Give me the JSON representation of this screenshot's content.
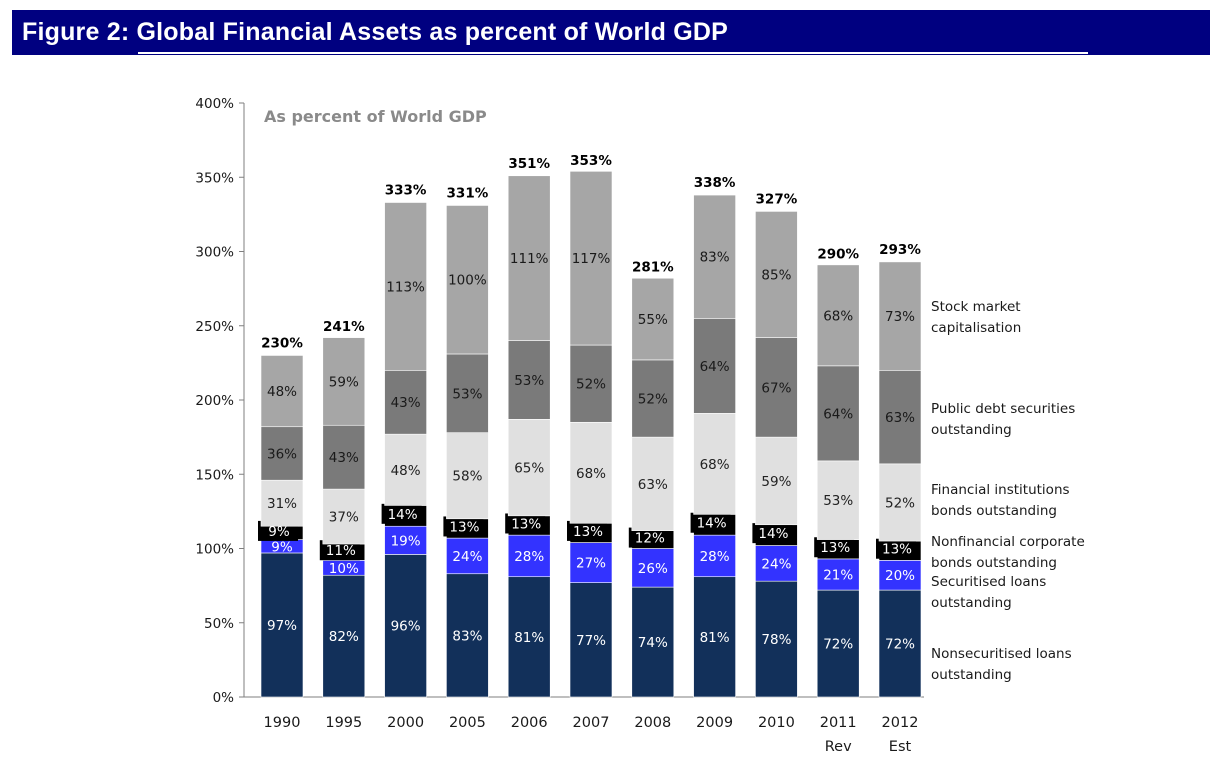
{
  "figure_title": "Figure 2: Global Financial Assets as percent of World GDP",
  "chart_data": {
    "type": "bar",
    "stacked": true,
    "title": "As percent of World GDP",
    "categories": [
      "1990",
      "1995",
      "2000",
      "2005",
      "2006",
      "2007",
      "2008",
      "2009",
      "2010",
      "2011\nRev",
      "2012\nEst"
    ],
    "ylim": [
      0,
      400
    ],
    "yticks": [
      "0%",
      "50%",
      "100%",
      "150%",
      "200%",
      "250%",
      "300%",
      "350%",
      "400%"
    ],
    "grid": false,
    "legend_position": "right",
    "totals": [
      230,
      241,
      333,
      331,
      351,
      353,
      281,
      338,
      327,
      290,
      293
    ],
    "total_labels": [
      "230%",
      "241%",
      "333%",
      "331%",
      "351%",
      "353%",
      "281%",
      "338%",
      "327%",
      "290%",
      "293%"
    ],
    "series": [
      {
        "name": "Nonsecuritised loans\noutstanding",
        "color": "#12305a",
        "label_color": "#ffffff",
        "values": [
          97,
          82,
          96,
          83,
          81,
          77,
          74,
          81,
          78,
          72,
          72
        ],
        "labels": [
          "97%",
          "82%",
          "96%",
          "83%",
          "81%",
          "77%",
          "74%",
          "81%",
          "78%",
          "72%",
          "72%"
        ]
      },
      {
        "name": "Securitised loans\noutstanding",
        "color": "#3333ff",
        "label_color": "#ffffff",
        "values": [
          9,
          10,
          19,
          24,
          28,
          27,
          26,
          28,
          24,
          21,
          20
        ],
        "labels": [
          "9%",
          "10%",
          "19%",
          "24%",
          "28%",
          "27%",
          "26%",
          "28%",
          "24%",
          "21%",
          "20%"
        ]
      },
      {
        "name": "Nonfinancial corporate\nbonds outstanding",
        "color": "#000000",
        "label_color": "#ffffff",
        "values": [
          9,
          11,
          14,
          13,
          13,
          13,
          12,
          14,
          14,
          13,
          13
        ],
        "labels": [
          "9%",
          "11%",
          "14%",
          "13%",
          "13%",
          "13%",
          "12%",
          "14%",
          "14%",
          "13%",
          "13%"
        ]
      },
      {
        "name": "Financial institutions\nbonds outstanding",
        "color": "#e0e0e0",
        "label_color": "#222222",
        "values": [
          31,
          37,
          48,
          58,
          65,
          68,
          63,
          68,
          59,
          53,
          52
        ],
        "labels": [
          "31%",
          "37%",
          "48%",
          "58%",
          "65%",
          "68%",
          "63%",
          "68%",
          "59%",
          "53%",
          "52%"
        ]
      },
      {
        "name": "Public debt securities\noutstanding",
        "color": "#7a7a7a",
        "label_color": "#1a1a1a",
        "values": [
          36,
          43,
          43,
          53,
          53,
          52,
          52,
          64,
          67,
          64,
          63
        ],
        "labels": [
          "36%",
          "43%",
          "43%",
          "53%",
          "53%",
          "52%",
          "52%",
          "64%",
          "67%",
          "64%",
          "63%"
        ]
      },
      {
        "name": "Stock market\ncapitalisation",
        "color": "#a6a6a6",
        "label_color": "#1a1a1a",
        "values": [
          48,
          59,
          113,
          100,
          111,
          117,
          55,
          83,
          85,
          68,
          73
        ],
        "labels": [
          "48%",
          "59%",
          "113%",
          "100%",
          "111%",
          "117%",
          "55%",
          "83%",
          "85%",
          "68%",
          "73%"
        ]
      }
    ]
  }
}
